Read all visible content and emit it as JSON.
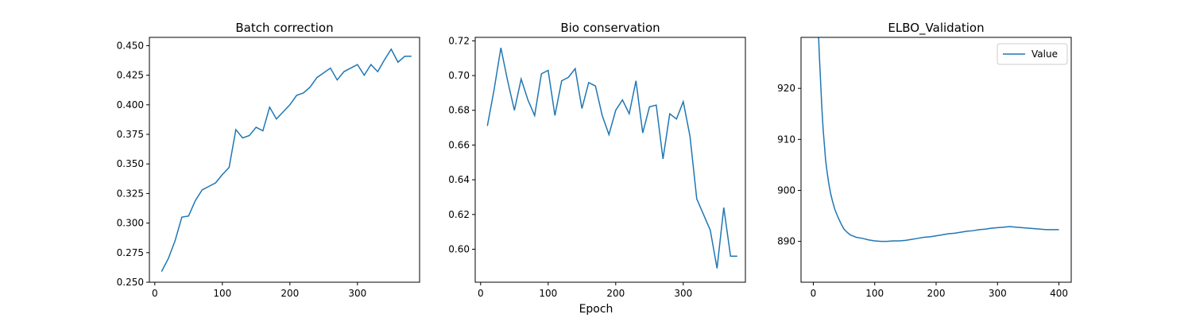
{
  "figure": {
    "xlabel": "Epoch"
  },
  "chart_data": [
    {
      "type": "line",
      "title": "Batch correction",
      "xlabel": "",
      "ylabel": "",
      "xlim": [
        -8,
        392
      ],
      "ylim": [
        0.25,
        0.457
      ],
      "xticks": [
        0,
        100,
        200,
        300
      ],
      "yticks": [
        0.25,
        0.275,
        0.3,
        0.325,
        0.35,
        0.375,
        0.4,
        0.425,
        0.45
      ],
      "ytick_decimals": 3,
      "grid": false,
      "series": [
        {
          "color": "#1f77b4",
          "x": [
            10,
            20,
            30,
            40,
            50,
            60,
            70,
            80,
            90,
            100,
            110,
            120,
            130,
            140,
            150,
            160,
            170,
            180,
            190,
            200,
            210,
            220,
            230,
            240,
            250,
            260,
            270,
            280,
            290,
            300,
            310,
            320,
            330,
            340,
            350,
            360,
            370,
            380
          ],
          "y": [
            0.259,
            0.27,
            0.285,
            0.305,
            0.306,
            0.319,
            0.328,
            0.331,
            0.334,
            0.341,
            0.347,
            0.379,
            0.372,
            0.374,
            0.381,
            0.378,
            0.398,
            0.388,
            0.394,
            0.4,
            0.408,
            0.41,
            0.415,
            0.423,
            0.427,
            0.431,
            0.421,
            0.428,
            0.431,
            0.434,
            0.425,
            0.434,
            0.428,
            0.438,
            0.447,
            0.436,
            0.441,
            0.441
          ]
        }
      ]
    },
    {
      "type": "line",
      "title": "Bio conservation",
      "xlabel": "",
      "ylabel": "",
      "xlim": [
        -8,
        392
      ],
      "ylim": [
        0.581,
        0.722
      ],
      "xticks": [
        0,
        100,
        200,
        300
      ],
      "yticks": [
        0.6,
        0.62,
        0.64,
        0.66,
        0.68,
        0.7,
        0.72
      ],
      "ytick_decimals": 2,
      "grid": false,
      "series": [
        {
          "color": "#1f77b4",
          "x": [
            10,
            20,
            30,
            40,
            50,
            60,
            70,
            80,
            90,
            100,
            110,
            120,
            130,
            140,
            150,
            160,
            170,
            180,
            190,
            200,
            210,
            220,
            230,
            240,
            250,
            260,
            270,
            280,
            290,
            300,
            310,
            320,
            330,
            340,
            350,
            360,
            370,
            380
          ],
          "y": [
            0.671,
            0.692,
            0.716,
            0.697,
            0.68,
            0.698,
            0.686,
            0.677,
            0.701,
            0.703,
            0.677,
            0.697,
            0.699,
            0.704,
            0.681,
            0.696,
            0.694,
            0.677,
            0.666,
            0.68,
            0.686,
            0.678,
            0.697,
            0.667,
            0.682,
            0.683,
            0.652,
            0.678,
            0.675,
            0.685,
            0.665,
            0.629,
            0.62,
            0.611,
            0.589,
            0.624,
            0.596,
            0.596
          ]
        }
      ]
    },
    {
      "type": "line",
      "title": "ELBO_Validation",
      "xlabel": "",
      "ylabel": "",
      "xlim": [
        -20,
        420
      ],
      "ylim": [
        882,
        930
      ],
      "xticks": [
        0,
        100,
        200,
        300,
        400
      ],
      "yticks": [
        890,
        900,
        910,
        920
      ],
      "ytick_decimals": 0,
      "grid": false,
      "legend": {
        "position": "top-right",
        "entries": [
          "Value"
        ]
      },
      "series": [
        {
          "name": "Value",
          "color": "#1f77b4",
          "x": [
            8,
            10,
            12,
            14,
            16,
            18,
            20,
            22,
            25,
            28,
            31,
            35,
            40,
            45,
            50,
            55,
            60,
            70,
            80,
            90,
            100,
            110,
            120,
            130,
            140,
            150,
            160,
            170,
            180,
            190,
            200,
            210,
            220,
            230,
            240,
            250,
            260,
            270,
            280,
            290,
            300,
            310,
            320,
            330,
            340,
            350,
            360,
            370,
            380,
            390,
            400
          ],
          "y": [
            932,
            926,
            921,
            916,
            912,
            909,
            906,
            904,
            901.5,
            899.5,
            898,
            896.3,
            894.8,
            893.5,
            892.4,
            891.8,
            891.3,
            890.8,
            890.6,
            890.3,
            890.1,
            890.0,
            890.0,
            890.1,
            890.1,
            890.2,
            890.4,
            890.6,
            890.8,
            890.9,
            891.1,
            891.3,
            891.5,
            891.6,
            891.8,
            892.0,
            892.1,
            892.3,
            892.4,
            892.6,
            892.7,
            892.8,
            892.9,
            892.8,
            892.7,
            892.6,
            892.5,
            892.4,
            892.3,
            892.3,
            892.3
          ]
        }
      ]
    }
  ]
}
